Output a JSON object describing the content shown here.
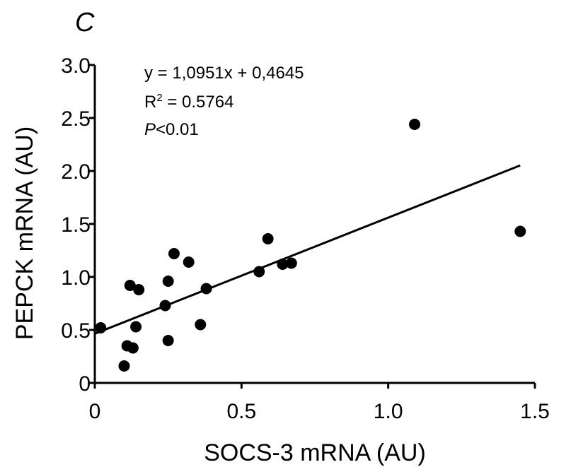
{
  "panel_label": "C",
  "chart_data": {
    "type": "scatter",
    "xlabel": "SOCS-3 mRNA (AU)",
    "ylabel": "PEPCK mRNA (AU)",
    "xlim": [
      0,
      1.5
    ],
    "ylim": [
      0,
      3.0
    ],
    "x_ticks": [
      0,
      0.5,
      1.0,
      1.5
    ],
    "x_tick_labels": [
      "0",
      "0.5",
      "1.0",
      "1.5"
    ],
    "y_ticks": [
      0,
      0.5,
      1.0,
      1.5,
      2.0,
      2.5,
      3.0
    ],
    "y_tick_labels": [
      "0",
      "0.5",
      "1.0",
      "1.5",
      "2.0",
      "2.5",
      "3.0"
    ],
    "grid": false,
    "legend": "none",
    "points": [
      {
        "x": 0.02,
        "y": 0.52
      },
      {
        "x": 0.1,
        "y": 0.16
      },
      {
        "x": 0.11,
        "y": 0.35
      },
      {
        "x": 0.12,
        "y": 0.92
      },
      {
        "x": 0.13,
        "y": 0.33
      },
      {
        "x": 0.14,
        "y": 0.53
      },
      {
        "x": 0.15,
        "y": 0.88
      },
      {
        "x": 0.25,
        "y": 0.4
      },
      {
        "x": 0.25,
        "y": 0.96
      },
      {
        "x": 0.27,
        "y": 1.22
      },
      {
        "x": 0.24,
        "y": 0.73
      },
      {
        "x": 0.32,
        "y": 1.14
      },
      {
        "x": 0.36,
        "y": 0.55
      },
      {
        "x": 0.38,
        "y": 0.89
      },
      {
        "x": 0.56,
        "y": 1.05
      },
      {
        "x": 0.59,
        "y": 1.36
      },
      {
        "x": 0.64,
        "y": 1.12
      },
      {
        "x": 0.67,
        "y": 1.13
      },
      {
        "x": 1.09,
        "y": 2.44
      },
      {
        "x": 1.45,
        "y": 1.43
      }
    ],
    "trendline": {
      "slope": 1.0951,
      "intercept": 0.4645,
      "x_range": [
        0,
        1.45
      ]
    },
    "annotations": {
      "equation": "y = 1,0951x + 0,4645",
      "r2_prefix": "R",
      "r2_sup": "2",
      "r2_suffix": " = 0.5764",
      "p_symbol": "P",
      "p_suffix": "<0.01"
    },
    "colors": {
      "marker": "#000000",
      "axis": "#000000",
      "line": "#000000"
    }
  }
}
